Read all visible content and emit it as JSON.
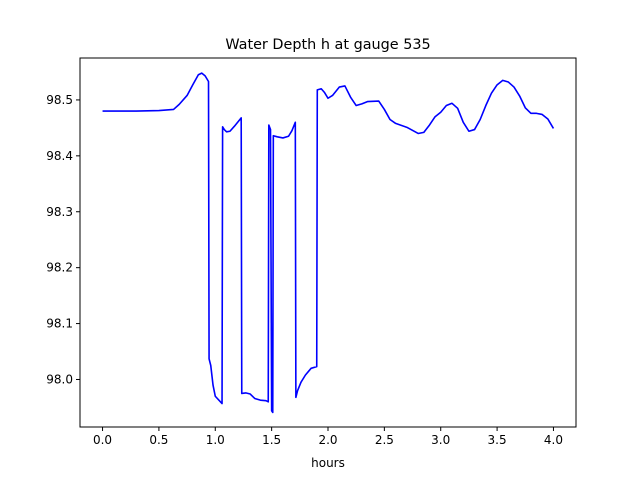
{
  "chart_data": {
    "type": "line",
    "title": "Water Depth h at gauge 535",
    "xlabel": "hours",
    "ylabel": "",
    "xlim": [
      -0.2,
      4.2
    ],
    "ylim": [
      97.915,
      98.575
    ],
    "xticks": [
      0.0,
      0.5,
      1.0,
      1.5,
      2.0,
      2.5,
      3.0,
      3.5,
      4.0
    ],
    "xtick_labels": [
      "0.0",
      "0.5",
      "1.0",
      "1.5",
      "2.0",
      "2.5",
      "3.0",
      "3.5",
      "4.0"
    ],
    "yticks": [
      98.0,
      98.1,
      98.2,
      98.3,
      98.4,
      98.5
    ],
    "ytick_labels": [
      "98.0",
      "98.1",
      "98.2",
      "98.3",
      "98.4",
      "98.5"
    ],
    "grid": false,
    "series": [
      {
        "color": "#0000ff",
        "points": [
          [
            0.0,
            98.48
          ],
          [
            0.3,
            98.48
          ],
          [
            0.5,
            98.481
          ],
          [
            0.63,
            98.483
          ],
          [
            0.68,
            98.492
          ],
          [
            0.75,
            98.508
          ],
          [
            0.8,
            98.527
          ],
          [
            0.85,
            98.545
          ],
          [
            0.88,
            98.548
          ],
          [
            0.91,
            98.543
          ],
          [
            0.94,
            98.533
          ],
          [
            0.945,
            98.037
          ],
          [
            0.96,
            98.025
          ],
          [
            0.98,
            97.99
          ],
          [
            1.0,
            97.97
          ],
          [
            1.06,
            97.957
          ],
          [
            1.065,
            98.452
          ],
          [
            1.08,
            98.447
          ],
          [
            1.1,
            98.443
          ],
          [
            1.13,
            98.444
          ],
          [
            1.17,
            98.453
          ],
          [
            1.23,
            98.468
          ],
          [
            1.235,
            97.975
          ],
          [
            1.27,
            97.976
          ],
          [
            1.31,
            97.974
          ],
          [
            1.35,
            97.966
          ],
          [
            1.4,
            97.963
          ],
          [
            1.45,
            97.962
          ],
          [
            1.47,
            97.96
          ],
          [
            1.475,
            98.455
          ],
          [
            1.49,
            98.447
          ],
          [
            1.5,
            97.944
          ],
          [
            1.51,
            97.941
          ],
          [
            1.515,
            98.436
          ],
          [
            1.55,
            98.434
          ],
          [
            1.6,
            98.432
          ],
          [
            1.65,
            98.435
          ],
          [
            1.68,
            98.445
          ],
          [
            1.71,
            98.46
          ],
          [
            1.715,
            97.968
          ],
          [
            1.73,
            97.98
          ],
          [
            1.76,
            97.995
          ],
          [
            1.8,
            98.008
          ],
          [
            1.85,
            98.02
          ],
          [
            1.9,
            98.023
          ],
          [
            1.905,
            98.518
          ],
          [
            1.94,
            98.52
          ],
          [
            1.97,
            98.513
          ],
          [
            2.0,
            98.503
          ],
          [
            2.04,
            98.508
          ],
          [
            2.1,
            98.523
          ],
          [
            2.15,
            98.525
          ],
          [
            2.2,
            98.505
          ],
          [
            2.25,
            98.49
          ],
          [
            2.3,
            98.493
          ],
          [
            2.35,
            98.497
          ],
          [
            2.45,
            98.498
          ],
          [
            2.5,
            98.483
          ],
          [
            2.55,
            98.465
          ],
          [
            2.6,
            98.458
          ],
          [
            2.7,
            98.451
          ],
          [
            2.8,
            98.44
          ],
          [
            2.85,
            98.442
          ],
          [
            2.9,
            98.455
          ],
          [
            2.95,
            98.47
          ],
          [
            3.0,
            98.478
          ],
          [
            3.05,
            98.49
          ],
          [
            3.1,
            98.494
          ],
          [
            3.15,
            98.485
          ],
          [
            3.2,
            98.46
          ],
          [
            3.25,
            98.444
          ],
          [
            3.3,
            98.447
          ],
          [
            3.35,
            98.465
          ],
          [
            3.4,
            98.49
          ],
          [
            3.45,
            98.512
          ],
          [
            3.5,
            98.527
          ],
          [
            3.55,
            98.535
          ],
          [
            3.6,
            98.532
          ],
          [
            3.65,
            98.523
          ],
          [
            3.7,
            98.507
          ],
          [
            3.75,
            98.486
          ],
          [
            3.8,
            98.476
          ],
          [
            3.85,
            98.476
          ],
          [
            3.9,
            98.474
          ],
          [
            3.95,
            98.466
          ],
          [
            4.0,
            98.449
          ]
        ]
      }
    ]
  }
}
